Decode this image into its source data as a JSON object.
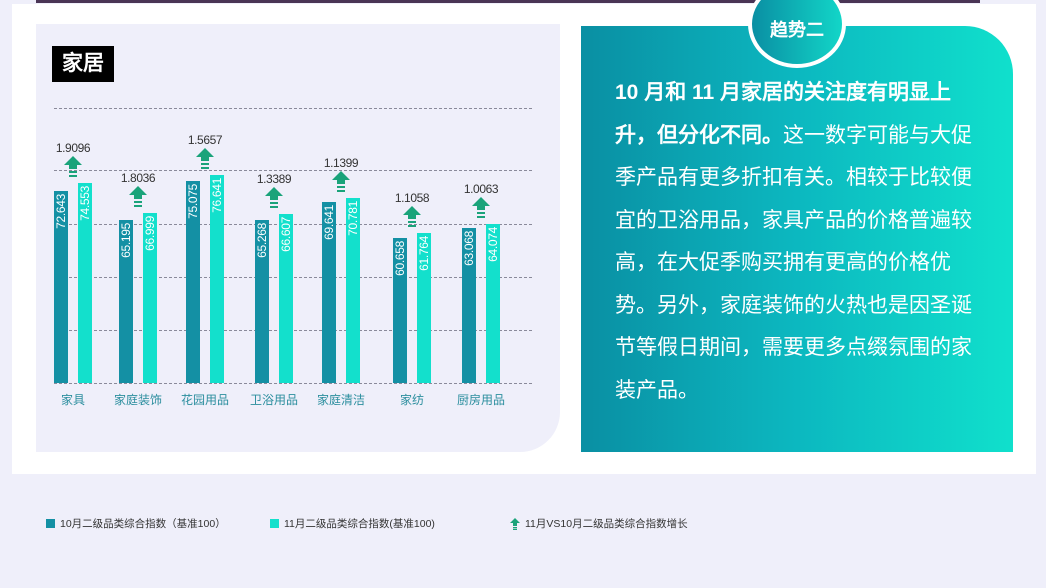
{
  "trend_badge": "趋势二",
  "chart_title": "家居",
  "text_panel": {
    "bold_text": "10 月和 11 月家居的关注度有明显上升，但分化不同。",
    "body_text": "这一数字可能与大促季产品有更多折扣有关。相较于比较便宜的卫浴用品，家具产品的价格普遍较高，在大促季购买拥有更高的价格优势。另外，家庭装饰的火热也是因圣诞节等假日期间，需要更多点缀氛围的家装产品。"
  },
  "legend": [
    {
      "label": "10月二级品类综合指数（基准100）",
      "color": "#1490a4",
      "shape": "square"
    },
    {
      "label": "11月二级品类综合指数(基准100)",
      "color": "#13e0cc",
      "shape": "square"
    },
    {
      "label": "11月VS10月二级品类综合指数增长",
      "color": "#1aa37a",
      "shape": "arrow-up-icon"
    }
  ],
  "colors": {
    "oct": "#1490a4",
    "nov": "#13e0cc",
    "arrow": "#1aa37a",
    "panel_gradient_start": "#0a8fa3",
    "panel_gradient_end": "#10e0cc"
  },
  "chart_data": {
    "type": "bar",
    "title": "家居",
    "categories": [
      "家具",
      "家庭装饰",
      "花园用品",
      "卫浴用品",
      "家庭清洁",
      "家纺",
      "厨房用品"
    ],
    "series": [
      {
        "name": "10月二级品类综合指数（基准100）",
        "values": [
          72.643,
          65.195,
          75.075,
          65.268,
          69.641,
          60.658,
          63.068
        ]
      },
      {
        "name": "11月二级品类综合指数(基准100)",
        "values": [
          74.553,
          66.999,
          76.641,
          66.607,
          70.781,
          61.764,
          64.074
        ]
      },
      {
        "name": "11月VS10月二级品类综合指数增长",
        "values": [
          1.9096,
          1.8036,
          1.5657,
          1.3389,
          1.1399,
          1.1058,
          1.0063
        ]
      }
    ],
    "growth_labels": [
      "1.9096",
      "1.8036",
      "1.5657",
      "1.3389",
      "1.1399",
      "1.1058",
      "1.0063"
    ],
    "oct_labels": [
      "72.643",
      "65.195",
      "75.075",
      "65.268",
      "69.641",
      "60.658",
      "63.068"
    ],
    "nov_labels": [
      "74.553",
      "66.999",
      "76.641",
      "66.607",
      "70.781",
      "61.764",
      "64.074"
    ],
    "xlabel": "",
    "ylabel": "",
    "grid": "dashed horizontal",
    "legend_position": "bottom"
  }
}
